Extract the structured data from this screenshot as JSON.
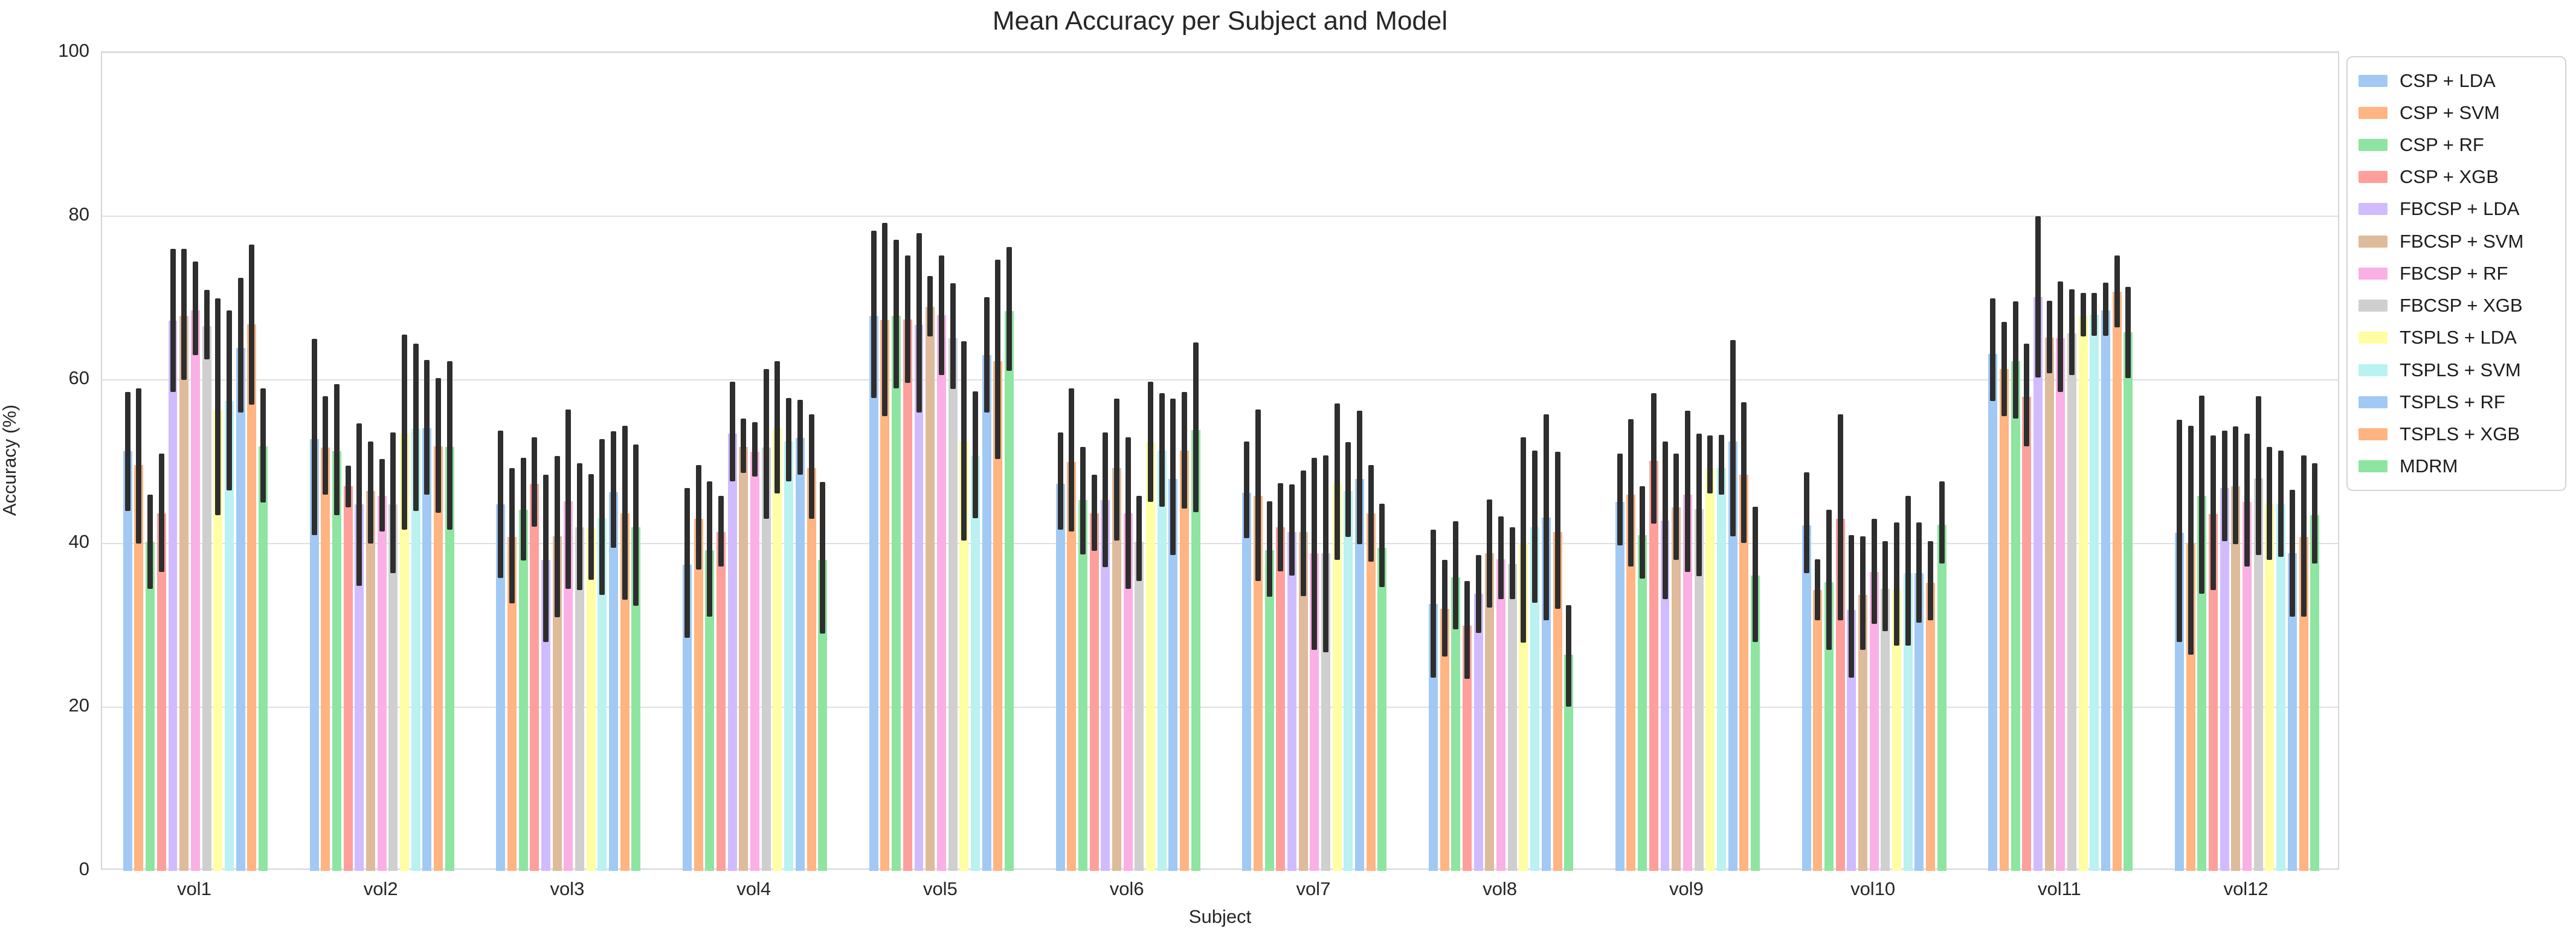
{
  "figure": {
    "title": "Mean Accuracy per Subject and Model",
    "xlabel": "Subject",
    "ylabel": "Accuracy (%)"
  },
  "chart_data": {
    "type": "bar",
    "title": "Mean Accuracy per Subject and Model",
    "xlabel": "Subject",
    "ylabel": "Accuracy (%)",
    "ylim": [
      0,
      100
    ],
    "yticks": [
      0,
      20,
      40,
      60,
      80,
      100
    ],
    "grid": true,
    "legend_position": "outside-right",
    "error_bar_color": "#2e2e2e",
    "categories": [
      "vol1",
      "vol2",
      "vol3",
      "vol4",
      "vol5",
      "vol6",
      "vol7",
      "vol8",
      "vol9",
      "vol10",
      "vol11",
      "vol12"
    ],
    "series": [
      {
        "name": "CSP + LDA",
        "color": "#a1c9f4",
        "values": [
          51.3,
          52.8,
          44.8,
          37.4,
          67.8,
          47.3,
          46.2,
          32.6,
          45.1,
          42.2,
          63.2,
          41.3
        ],
        "err_low": [
          44.0,
          41.0,
          35.8,
          28.5,
          57.8,
          41.7,
          40.7,
          23.6,
          39.8,
          36.4,
          57.4,
          28.0
        ],
        "err_high": [
          58.5,
          65.0,
          53.8,
          46.8,
          78.2,
          53.6,
          52.5,
          41.7,
          51.0,
          48.7,
          70.0,
          55.1
        ]
      },
      {
        "name": "CSP + SVM",
        "color": "#ffb482",
        "values": [
          49.6,
          51.7,
          40.8,
          43.0,
          67.3,
          50.0,
          45.8,
          32.0,
          46.0,
          34.3,
          61.3,
          40.1
        ],
        "err_low": [
          40.0,
          46.0,
          32.7,
          36.8,
          55.6,
          41.5,
          35.4,
          26.2,
          37.2,
          30.6,
          55.6,
          26.4
        ],
        "err_high": [
          59.0,
          58.0,
          49.2,
          49.6,
          79.2,
          59.0,
          56.4,
          38.0,
          55.2,
          38.1,
          67.1,
          54.4
        ]
      },
      {
        "name": "CSP + RF",
        "color": "#8de5a1",
        "values": [
          40.2,
          51.3,
          44.1,
          39.2,
          67.8,
          45.3,
          39.2,
          35.9,
          41.0,
          35.3,
          62.3,
          45.8
        ],
        "err_low": [
          34.5,
          43.5,
          37.9,
          31.1,
          59.0,
          38.7,
          33.5,
          29.5,
          35.7,
          27.0,
          55.3,
          33.9
        ],
        "err_high": [
          46.0,
          59.5,
          50.5,
          47.6,
          77.1,
          51.8,
          45.2,
          42.7,
          47.0,
          44.1,
          69.6,
          58.1
        ]
      },
      {
        "name": "CSP + XGB",
        "color": "#ff9f9b",
        "values": [
          43.7,
          47.0,
          47.3,
          41.4,
          67.4,
          43.7,
          42.0,
          30.0,
          50.1,
          43.0,
          57.9,
          43.6
        ],
        "err_low": [
          36.5,
          44.4,
          42.1,
          37.2,
          59.6,
          39.1,
          36.6,
          23.5,
          42.4,
          30.6,
          51.9,
          34.3
        ],
        "err_high": [
          51.0,
          49.5,
          53.0,
          45.8,
          75.2,
          48.4,
          47.4,
          35.4,
          58.4,
          55.8,
          64.4,
          53.2
        ]
      },
      {
        "name": "FBCSP + LDA",
        "color": "#d0bbff",
        "values": [
          67.2,
          44.8,
          38.0,
          53.4,
          66.7,
          45.3,
          41.4,
          33.9,
          42.8,
          31.9,
          70.1,
          46.8
        ],
        "err_low": [
          58.5,
          34.8,
          28.0,
          47.6,
          56.0,
          37.1,
          36.1,
          29.1,
          33.2,
          23.6,
          60.3,
          40.3
        ],
        "err_high": [
          76.0,
          54.7,
          48.4,
          59.8,
          77.9,
          53.6,
          47.2,
          38.6,
          52.5,
          41.0,
          80.0,
          53.8
        ]
      },
      {
        "name": "FBCSP + SVM",
        "color": "#debb9b",
        "values": [
          67.8,
          46.4,
          40.9,
          51.8,
          68.9,
          49.2,
          41.4,
          38.8,
          44.4,
          33.7,
          65.2,
          47.0
        ],
        "err_low": [
          60.0,
          40.0,
          31.0,
          48.6,
          65.3,
          40.4,
          33.6,
          32.2,
          38.0,
          27.0,
          60.8,
          39.9
        ],
        "err_high": [
          76.0,
          52.5,
          50.7,
          55.3,
          72.7,
          57.7,
          48.9,
          45.4,
          51.0,
          40.9,
          69.7,
          54.3
        ]
      },
      {
        "name": "FBCSP + RF",
        "color": "#fab0e4",
        "values": [
          68.5,
          45.8,
          45.2,
          51.2,
          67.9,
          43.7,
          38.8,
          38.1,
          46.0,
          36.5,
          65.1,
          45.1
        ],
        "err_low": [
          63.0,
          41.5,
          34.5,
          48.2,
          60.6,
          34.5,
          27.0,
          33.2,
          36.5,
          30.2,
          58.5,
          37.2
        ],
        "err_high": [
          74.5,
          50.3,
          56.4,
          54.8,
          75.2,
          53.0,
          50.5,
          43.3,
          56.2,
          43.0,
          72.0,
          53.4
        ]
      },
      {
        "name": "FBCSP + XGB",
        "color": "#cfcfcf",
        "values": [
          66.6,
          44.8,
          42.0,
          51.7,
          65.1,
          40.2,
          38.8,
          37.5,
          44.2,
          34.5,
          65.7,
          48.0
        ],
        "err_low": [
          62.5,
          36.4,
          34.3,
          43.0,
          58.9,
          35.4,
          26.7,
          33.2,
          36.0,
          29.3,
          60.6,
          38.6
        ],
        "err_high": [
          71.0,
          53.6,
          49.8,
          61.3,
          71.8,
          45.8,
          50.8,
          42.0,
          53.4,
          40.3,
          71.1,
          58.0
        ]
      },
      {
        "name": "TSPLS + LDA",
        "color": "#fffea3",
        "values": [
          56.3,
          53.4,
          41.9,
          54.1,
          52.5,
          52.4,
          47.4,
          40.1,
          49.2,
          34.5,
          67.8,
          44.9
        ],
        "err_low": [
          43.5,
          41.7,
          35.6,
          46.1,
          40.4,
          45.1,
          38.0,
          27.9,
          46.1,
          27.5,
          65.3,
          38.0
        ],
        "err_high": [
          70.0,
          65.5,
          48.5,
          62.3,
          64.7,
          59.8,
          57.1,
          53.0,
          53.2,
          42.6,
          70.6,
          51.8
        ]
      },
      {
        "name": "TSPLS + SVM",
        "color": "#b9f2f0",
        "values": [
          57.4,
          54.0,
          43.1,
          52.5,
          50.7,
          51.4,
          46.4,
          42.0,
          49.2,
          36.4,
          68.0,
          44.8
        ],
        "err_low": [
          46.5,
          44.0,
          33.7,
          47.6,
          43.1,
          44.5,
          40.8,
          32.8,
          46.0,
          27.5,
          65.4,
          38.4
        ],
        "err_high": [
          68.5,
          64.4,
          52.8,
          57.8,
          58.6,
          58.4,
          52.4,
          51.4,
          53.3,
          45.8,
          70.6,
          51.4
        ]
      },
      {
        "name": "TSPLS + RF",
        "color": "#a1c9f4",
        "values": [
          63.9,
          54.1,
          46.3,
          52.9,
          63.0,
          47.9,
          47.9,
          43.2,
          52.5,
          36.4,
          68.5,
          38.8
        ],
        "err_low": [
          56.0,
          46.0,
          39.5,
          48.4,
          56.0,
          38.6,
          39.9,
          30.6,
          40.9,
          30.3,
          65.4,
          31.1
        ],
        "err_high": [
          72.5,
          62.4,
          53.7,
          57.6,
          70.1,
          57.7,
          56.2,
          55.8,
          64.9,
          42.6,
          71.9,
          46.6
        ]
      },
      {
        "name": "TSPLS + XGB",
        "color": "#ffb482",
        "values": [
          66.8,
          51.9,
          43.7,
          49.2,
          62.3,
          51.4,
          43.7,
          41.4,
          48.4,
          35.2,
          70.8,
          40.8
        ],
        "err_low": [
          57.0,
          43.8,
          33.1,
          43.0,
          50.3,
          44.3,
          37.8,
          32.0,
          40.1,
          30.6,
          66.4,
          31.1
        ],
        "err_high": [
          76.5,
          60.2,
          54.4,
          55.8,
          74.7,
          58.5,
          49.6,
          51.2,
          57.3,
          40.3,
          75.2,
          50.8
        ]
      },
      {
        "name": "MDRM",
        "color": "#8de5a1",
        "values": [
          51.9,
          51.8,
          42.0,
          38.0,
          68.4,
          53.9,
          39.5,
          26.4,
          36.1,
          42.3,
          65.8,
          43.5
        ],
        "err_low": [
          45.0,
          41.7,
          32.4,
          29.0,
          61.1,
          43.8,
          34.7,
          20.1,
          28.0,
          37.6,
          60.2,
          37.6
        ],
        "err_high": [
          59.0,
          62.3,
          52.1,
          47.5,
          76.2,
          64.6,
          44.9,
          32.5,
          44.5,
          47.6,
          71.4,
          49.8
        ]
      }
    ]
  }
}
